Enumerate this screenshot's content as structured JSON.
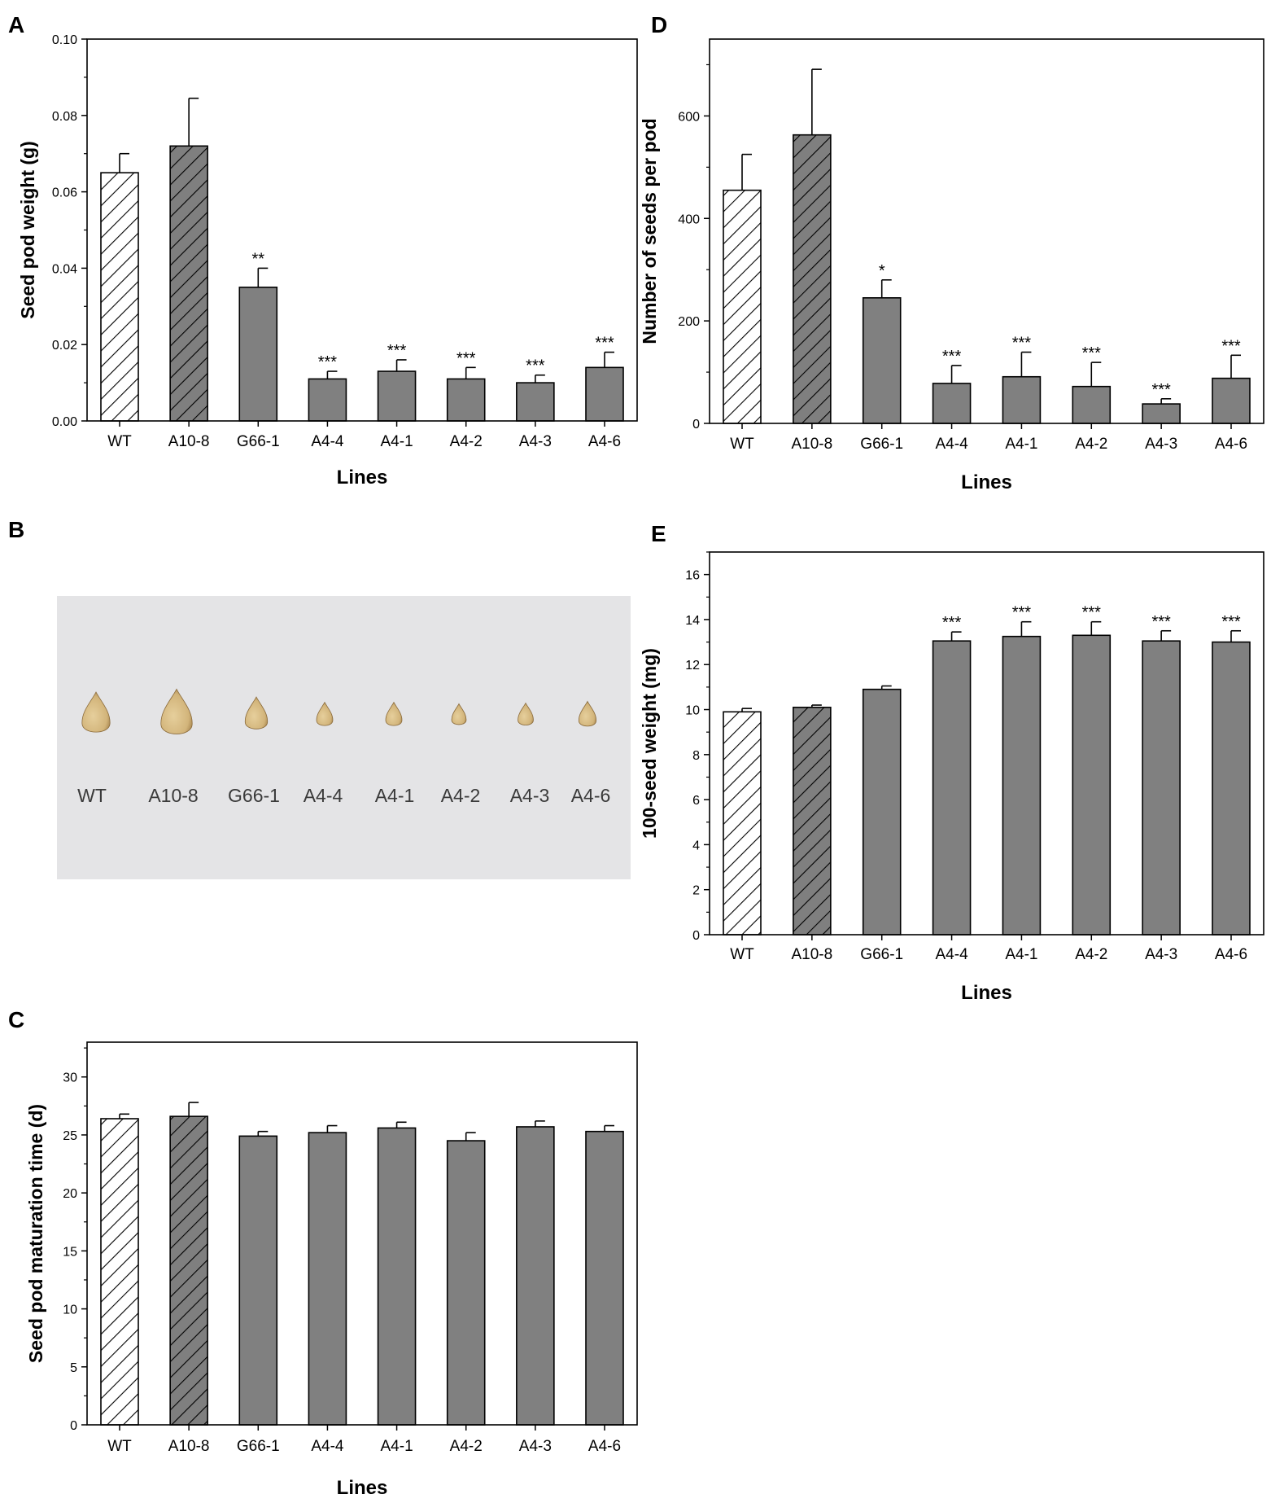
{
  "colors": {
    "bar_gray": "#808080",
    "hatch_dark_bg": "#7f7f7f",
    "photo_bg": "#e4e4e6",
    "seed": "#d7bd86"
  },
  "panels": {
    "A": {
      "letter": "A"
    },
    "B": {
      "letter": "B",
      "labels": [
        "WT",
        "A10-8",
        "G66-1",
        "A4-4",
        "A4-1",
        "A4-2",
        "A4-3",
        "A4-6"
      ],
      "seed_scale": [
        1.0,
        1.12,
        0.8,
        0.58,
        0.58,
        0.52,
        0.55,
        0.62
      ]
    },
    "C": {
      "letter": "C"
    },
    "D": {
      "letter": "D"
    },
    "E": {
      "letter": "E"
    }
  },
  "chart_data": [
    {
      "id": "A",
      "type": "bar",
      "categories": [
        "WT",
        "A10-8",
        "G66-1",
        "A4-4",
        "A4-1",
        "A4-2",
        "A4-3",
        "A4-6"
      ],
      "values": [
        0.065,
        0.072,
        0.035,
        0.011,
        0.013,
        0.011,
        0.01,
        0.014
      ],
      "errors": [
        0.005,
        0.0125,
        0.005,
        0.002,
        0.003,
        0.003,
        0.002,
        0.004
      ],
      "significance": [
        "",
        "",
        "**",
        "***",
        "***",
        "***",
        "***",
        "***"
      ],
      "xlabel": "Lines",
      "ylabel": "Seed pod weight (g)",
      "ylim": [
        0,
        0.1
      ],
      "yticks": [
        "0.00",
        "0.02",
        "0.04",
        "0.06",
        "0.08",
        "0.10"
      ],
      "yticks_val": [
        0,
        0.02,
        0.04,
        0.06,
        0.08,
        0.1
      ]
    },
    {
      "id": "C",
      "type": "bar",
      "categories": [
        "WT",
        "A10-8",
        "G66-1",
        "A4-4",
        "A4-1",
        "A4-2",
        "A4-3",
        "A4-6"
      ],
      "values": [
        26.4,
        26.6,
        24.9,
        25.2,
        25.6,
        24.5,
        25.7,
        25.3
      ],
      "errors": [
        0.4,
        1.2,
        0.4,
        0.6,
        0.5,
        0.7,
        0.5,
        0.5
      ],
      "significance": [
        "",
        "",
        "",
        "",
        "",
        "",
        "",
        ""
      ],
      "xlabel": "Lines",
      "ylabel": "Seed pod maturation time (d)",
      "ylim": [
        0,
        33
      ],
      "yticks": [
        "0",
        "5",
        "10",
        "15",
        "20",
        "25",
        "30"
      ],
      "yticks_val": [
        0,
        5,
        10,
        15,
        20,
        25,
        30
      ]
    },
    {
      "id": "D",
      "type": "bar",
      "categories": [
        "WT",
        "A10-8",
        "G66-1",
        "A4-4",
        "A4-1",
        "A4-2",
        "A4-3",
        "A4-6"
      ],
      "values": [
        455,
        563,
        245,
        78,
        91,
        72,
        38,
        88
      ],
      "errors": [
        70,
        128,
        35,
        35,
        48,
        47,
        10,
        45
      ],
      "significance": [
        "",
        "",
        "*",
        "***",
        "***",
        "***",
        "***",
        "***"
      ],
      "xlabel": "Lines",
      "ylabel": "Number of seeds per pod",
      "ylim": [
        0,
        750
      ],
      "yticks": [
        "0",
        "200",
        "400",
        "600"
      ],
      "yticks_val": [
        0,
        200,
        400,
        600
      ]
    },
    {
      "id": "E",
      "type": "bar",
      "categories": [
        "WT",
        "A10-8",
        "G66-1",
        "A4-4",
        "A4-1",
        "A4-2",
        "A4-3",
        "A4-6"
      ],
      "values": [
        9.9,
        10.1,
        10.9,
        13.05,
        13.25,
        13.3,
        13.05,
        13.0
      ],
      "errors": [
        0.15,
        0.1,
        0.15,
        0.4,
        0.65,
        0.6,
        0.45,
        0.5
      ],
      "significance": [
        "",
        "",
        "",
        "***",
        "***",
        "***",
        "***",
        "***"
      ],
      "xlabel": "Lines",
      "ylabel": "100-seed weight (mg)",
      "ylim": [
        0,
        17
      ],
      "yticks": [
        "0",
        "2",
        "4",
        "6",
        "8",
        "10",
        "12",
        "14",
        "16"
      ],
      "yticks_val": [
        0,
        2,
        4,
        6,
        8,
        10,
        12,
        14,
        16
      ]
    }
  ]
}
